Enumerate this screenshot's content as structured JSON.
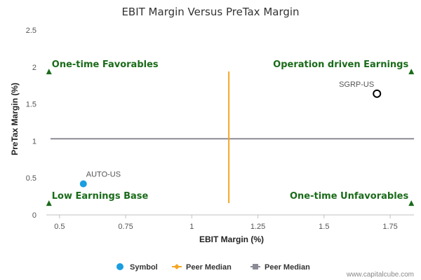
{
  "chart_data": {
    "type": "scatter",
    "title": "EBIT Margin Versus PreTax Margin",
    "xlabel": "EBIT Margin (%)",
    "ylabel": "PreTax Margin (%)",
    "xlim": [
      0.45,
      1.84
    ],
    "ylim": [
      0,
      2.5
    ],
    "x_ticks": [
      0.5,
      0.75,
      1,
      1.25,
      1.5,
      1.75
    ],
    "x_tick_labels": [
      "0.5",
      "0.75",
      "1",
      "1.25",
      "1.5",
      "1.75"
    ],
    "y_ticks": [
      0,
      0.5,
      1,
      1.5,
      2,
      2.5
    ],
    "y_tick_labels": [
      "0",
      "0.5",
      "1",
      "1.5",
      "2",
      "2.5"
    ],
    "grid": false,
    "points": [
      {
        "label": "AUTO-US",
        "x": 0.59,
        "y": 0.42,
        "style": "filled",
        "color": "#1a9ee0"
      },
      {
        "label": "SGRP-US",
        "x": 1.7,
        "y": 1.64,
        "style": "hollow",
        "color": "#000000"
      }
    ],
    "peer_median_x": {
      "value": 1.14,
      "y_range": [
        0.16,
        1.94
      ],
      "color": "#f5a623"
    },
    "peer_median_y": {
      "value": 1.03,
      "color": "#8c8c96"
    },
    "quadrants": [
      {
        "label": "One-time Favorables",
        "x": 0.46,
        "y": 1.94,
        "anchor": "start",
        "corner": "top-left"
      },
      {
        "label": "Operation driven Earnings",
        "x": 1.83,
        "y": 1.94,
        "anchor": "end",
        "corner": "top-right"
      },
      {
        "label": "Low Earnings Base",
        "x": 0.46,
        "y": 0.16,
        "anchor": "start",
        "corner": "bottom-left"
      },
      {
        "label": "One-time Unfavorables",
        "x": 1.83,
        "y": 0.16,
        "anchor": "end",
        "corner": "bottom-right"
      }
    ],
    "quadrant_color": "#1a6b1a",
    "legend": {
      "placement": "bottom-center",
      "items": [
        {
          "label": "Symbol",
          "marker": "circle",
          "color": "#1a9ee0"
        },
        {
          "label": "Peer Median",
          "marker": "line-diamond",
          "color": "#f5a623"
        },
        {
          "label": "Peer Median",
          "marker": "line-square",
          "color": "#8c8c96"
        }
      ]
    }
  },
  "footer": {
    "text": "www.capitalcube.com"
  }
}
